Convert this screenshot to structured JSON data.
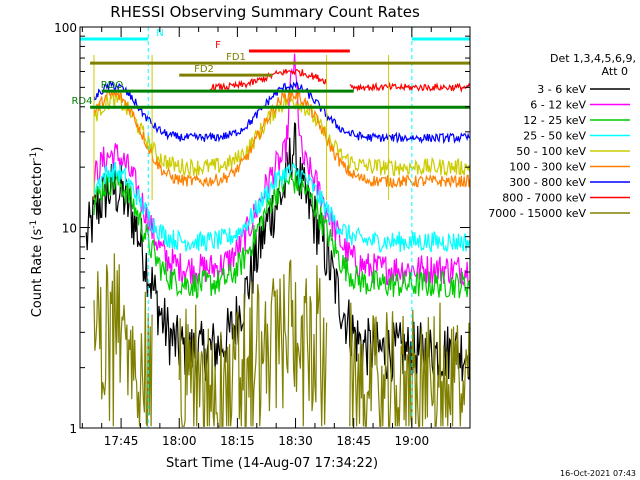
{
  "chart_data": {
    "type": "line",
    "title": "RHESSI Observing Summary Count Rates",
    "xlabel": "Start Time (14-Aug-07 17:34:22)",
    "ylabel": "Count Rate (s",
    "ylabel_sup1": "-1",
    "ylabel_mid": " detector",
    "ylabel_sup2": "-1",
    "ylabel_end": ")",
    "yscale": "log",
    "ylim": [
      1,
      100
    ],
    "y_ticks": [
      "1",
      "10",
      "100"
    ],
    "xlim_min": [
      34.4,
      135
    ],
    "x_ticks": [
      {
        "v": 45,
        "label": "17:45"
      },
      {
        "v": 60,
        "label": "18:00"
      },
      {
        "v": 75,
        "label": "18:15"
      },
      {
        "v": 90,
        "label": "18:30"
      },
      {
        "v": 105,
        "label": "18:45"
      },
      {
        "v": 120,
        "label": "19:00"
      }
    ],
    "legend_header": [
      "Det 1,3,4,5,6,9,",
      "Att 0"
    ],
    "series": [
      {
        "name": "3 - 6 keV",
        "color": "#000000"
      },
      {
        "name": "6 - 12 keV",
        "color": "#ff00ff"
      },
      {
        "name": "12 - 25 keV",
        "color": "#00cc00"
      },
      {
        "name": "25 - 50 keV",
        "color": "#00ffff"
      },
      {
        "name": "50 - 100 keV",
        "color": "#cccc00"
      },
      {
        "name": "100 - 300 keV",
        "color": "#ff8000"
      },
      {
        "name": "300 - 800 keV",
        "color": "#0000ff"
      },
      {
        "name": "800 - 7000 keV",
        "color": "#ff0000"
      },
      {
        "name": "7000 - 15000 keV",
        "color": "#808000"
      }
    ],
    "flags": [
      {
        "label": "N",
        "color": "#00ffff",
        "x0": 34.4,
        "x1": 52,
        "y": 0.97,
        "x0b": 120,
        "x1b": 135
      },
      {
        "label": "F",
        "color": "#ff0000",
        "x0": 78,
        "x1": 104,
        "y": 0.94
      },
      {
        "label": "FD1",
        "color": "#808000",
        "x0": 37,
        "x1": 135,
        "y": 0.91
      },
      {
        "label": "FD2",
        "color": "#808000",
        "x0": 60,
        "x1": 84,
        "y": 0.88
      },
      {
        "label": "RDO",
        "color": "#008000",
        "x0": 40,
        "x1": 105,
        "y": 0.84
      },
      {
        "label": "RD4",
        "color": "#008000",
        "x0": 37,
        "x1": 135,
        "y": 0.8
      }
    ],
    "day_boundaries": [
      38,
      53,
      98,
      114
    ],
    "night_boundaries": [
      52,
      120
    ]
  },
  "timestamp": "16-Oct-2021 07:43"
}
